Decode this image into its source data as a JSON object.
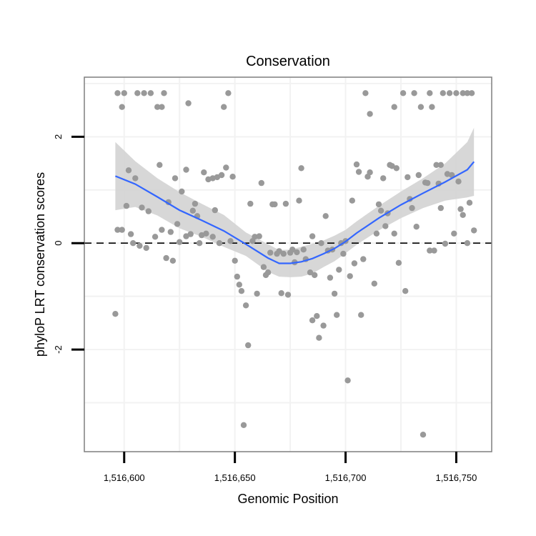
{
  "chart_data": {
    "type": "scatter",
    "title": "Conservation",
    "xlabel": "Genomic Position",
    "ylabel": "phyloP LRT conservation scores",
    "xlim": [
      1516582,
      1516766
    ],
    "ylim": [
      -3.92,
      3.12
    ],
    "x_ticks": [
      {
        "value": 1516600,
        "label": "1,516,600"
      },
      {
        "value": 1516650,
        "label": "1,516,650"
      },
      {
        "value": 1516700,
        "label": "1,516,700"
      },
      {
        "value": 1516750,
        "label": "1,516,750"
      }
    ],
    "y_ticks": [
      {
        "value": -2,
        "label": "-2"
      },
      {
        "value": 0,
        "label": "0"
      },
      {
        "value": 2,
        "label": "2"
      }
    ],
    "reference_line": {
      "y": 0,
      "style": "dashed",
      "color": "#000000"
    },
    "colors": {
      "points": "#999999",
      "smooth_line": "#3366ff",
      "confidence_band": "#d3d3d3",
      "grid": "#f2f2f2",
      "panel_border": "#7f7f7f"
    },
    "series": [
      {
        "name": "phyloP scores",
        "points": [
          [
            1516596,
            -1.33
          ],
          [
            1516597,
            2.82
          ],
          [
            1516597,
            0.25
          ],
          [
            1516599,
            0.25
          ],
          [
            1516599,
            2.56
          ],
          [
            1516600,
            2.82
          ],
          [
            1516601,
            0.7
          ],
          [
            1516602,
            1.37
          ],
          [
            1516603,
            0.17
          ],
          [
            1516604,
            0.0
          ],
          [
            1516605,
            1.22
          ],
          [
            1516606,
            2.82
          ],
          [
            1516607,
            -0.05
          ],
          [
            1516608,
            0.67
          ],
          [
            1516609,
            2.82
          ],
          [
            1516610,
            -0.09
          ],
          [
            1516611,
            0.6
          ],
          [
            1516612,
            2.82
          ],
          [
            1516614,
            0.12
          ],
          [
            1516615,
            2.56
          ],
          [
            1516616,
            1.47
          ],
          [
            1516617,
            0.25
          ],
          [
            1516617,
            2.56
          ],
          [
            1516618,
            2.82
          ],
          [
            1516619,
            -0.28
          ],
          [
            1516620,
            0.77
          ],
          [
            1516621,
            0.21
          ],
          [
            1516622,
            -0.33
          ],
          [
            1516623,
            1.22
          ],
          [
            1516624,
            0.36
          ],
          [
            1516625,
            0.02
          ],
          [
            1516626,
            0.97
          ],
          [
            1516628,
            1.38
          ],
          [
            1516628,
            0.13
          ],
          [
            1516629,
            2.63
          ],
          [
            1516630,
            0.17
          ],
          [
            1516631,
            0.61
          ],
          [
            1516632,
            0.74
          ],
          [
            1516633,
            0.51
          ],
          [
            1516634,
            0.0
          ],
          [
            1516635,
            0.15
          ],
          [
            1516636,
            1.33
          ],
          [
            1516637,
            0.18
          ],
          [
            1516638,
            1.2
          ],
          [
            1516640,
            0.12
          ],
          [
            1516640,
            1.22
          ],
          [
            1516641,
            0.62
          ],
          [
            1516642,
            1.24
          ],
          [
            1516643,
            0.0
          ],
          [
            1516644,
            1.28
          ],
          [
            1516645,
            2.56
          ],
          [
            1516646,
            1.42
          ],
          [
            1516647,
            2.82
          ],
          [
            1516648,
            0.04
          ],
          [
            1516649,
            1.25
          ],
          [
            1516650,
            -0.33
          ],
          [
            1516651,
            -0.63
          ],
          [
            1516652,
            -0.78
          ],
          [
            1516653,
            -0.9
          ],
          [
            1516654,
            -3.42
          ],
          [
            1516655,
            -1.17
          ],
          [
            1516656,
            -1.92
          ],
          [
            1516657,
            0.74
          ],
          [
            1516658,
            0.04
          ],
          [
            1516659,
            0.12
          ],
          [
            1516660,
            -0.95
          ],
          [
            1516661,
            0.13
          ],
          [
            1516662,
            1.13
          ],
          [
            1516663,
            -0.45
          ],
          [
            1516664,
            -0.6
          ],
          [
            1516665,
            -0.55
          ],
          [
            1516666,
            -0.18
          ],
          [
            1516667,
            0.73
          ],
          [
            1516668,
            0.73
          ],
          [
            1516669,
            -0.2
          ],
          [
            1516670,
            -0.15
          ],
          [
            1516671,
            -0.94
          ],
          [
            1516672,
            -0.2
          ],
          [
            1516673,
            0.74
          ],
          [
            1516674,
            -0.97
          ],
          [
            1516675,
            -0.18
          ],
          [
            1516676,
            -0.12
          ],
          [
            1516677,
            -0.36
          ],
          [
            1516678,
            -0.17
          ],
          [
            1516679,
            0.8
          ],
          [
            1516680,
            1.41
          ],
          [
            1516681,
            -0.12
          ],
          [
            1516682,
            -0.3
          ],
          [
            1516684,
            -0.55
          ],
          [
            1516685,
            0.13
          ],
          [
            1516685,
            -1.45
          ],
          [
            1516686,
            -0.6
          ],
          [
            1516687,
            -1.37
          ],
          [
            1516688,
            -1.78
          ],
          [
            1516689,
            0.0
          ],
          [
            1516690,
            -1.55
          ],
          [
            1516691,
            0.51
          ],
          [
            1516692,
            -0.14
          ],
          [
            1516693,
            -0.65
          ],
          [
            1516694,
            -0.12
          ],
          [
            1516695,
            -0.95
          ],
          [
            1516696,
            -1.35
          ],
          [
            1516697,
            -0.5
          ],
          [
            1516698,
            0.0
          ],
          [
            1516699,
            -0.2
          ],
          [
            1516700,
            0.04
          ],
          [
            1516701,
            -2.58
          ],
          [
            1516702,
            -0.62
          ],
          [
            1516703,
            0.8
          ],
          [
            1516704,
            -0.38
          ],
          [
            1516705,
            1.48
          ],
          [
            1516706,
            1.34
          ],
          [
            1516707,
            -1.35
          ],
          [
            1516708,
            -0.3
          ],
          [
            1516709,
            2.82
          ],
          [
            1516710,
            1.25
          ],
          [
            1516711,
            2.43
          ],
          [
            1516711,
            1.33
          ],
          [
            1516713,
            -0.76
          ],
          [
            1516714,
            0.18
          ],
          [
            1516715,
            0.73
          ],
          [
            1516716,
            0.61
          ],
          [
            1516717,
            1.22
          ],
          [
            1516718,
            0.32
          ],
          [
            1516719,
            0.56
          ],
          [
            1516720,
            1.47
          ],
          [
            1516721,
            1.45
          ],
          [
            1516722,
            2.56
          ],
          [
            1516722,
            0.18
          ],
          [
            1516723,
            1.41
          ],
          [
            1516724,
            -0.37
          ],
          [
            1516726,
            2.82
          ],
          [
            1516727,
            -0.9
          ],
          [
            1516728,
            1.24
          ],
          [
            1516729,
            0.83
          ],
          [
            1516730,
            0.66
          ],
          [
            1516731,
            2.82
          ],
          [
            1516732,
            0.31
          ],
          [
            1516733,
            1.28
          ],
          [
            1516734,
            2.56
          ],
          [
            1516735,
            -3.6
          ],
          [
            1516736,
            1.14
          ],
          [
            1516737,
            1.13
          ],
          [
            1516738,
            -0.14
          ],
          [
            1516738,
            2.82
          ],
          [
            1516739,
            2.56
          ],
          [
            1516740,
            -0.14
          ],
          [
            1516741,
            1.47
          ],
          [
            1516742,
            1.12
          ],
          [
            1516743,
            0.66
          ],
          [
            1516743,
            1.47
          ],
          [
            1516744,
            2.82
          ],
          [
            1516745,
            -0.01
          ],
          [
            1516746,
            1.3
          ],
          [
            1516747,
            2.82
          ],
          [
            1516748,
            1.28
          ],
          [
            1516749,
            0.18
          ],
          [
            1516750,
            2.82
          ],
          [
            1516751,
            1.16
          ],
          [
            1516752,
            0.64
          ],
          [
            1516753,
            2.82
          ],
          [
            1516753,
            0.53
          ],
          [
            1516755,
            2.82
          ],
          [
            1516755,
            0.0
          ],
          [
            1516756,
            0.76
          ],
          [
            1516757,
            2.82
          ],
          [
            1516758,
            0.24
          ]
        ]
      },
      {
        "name": "loess smooth",
        "type": "line",
        "x": [
          1516596,
          1516605,
          1516615,
          1516625,
          1516635,
          1516645,
          1516655,
          1516665,
          1516670,
          1516675,
          1516680,
          1516685,
          1516690,
          1516695,
          1516700,
          1516705,
          1516715,
          1516725,
          1516735,
          1516745,
          1516755,
          1516758
        ],
        "y": [
          1.26,
          1.11,
          0.87,
          0.62,
          0.43,
          0.23,
          -0.02,
          -0.28,
          -0.38,
          -0.38,
          -0.35,
          -0.29,
          -0.2,
          -0.1,
          0.03,
          0.19,
          0.47,
          0.72,
          0.94,
          1.15,
          1.38,
          1.53
        ],
        "ci_upper": [
          1.9,
          1.54,
          1.22,
          0.96,
          0.74,
          0.53,
          0.2,
          -0.02,
          -0.13,
          -0.12,
          -0.07,
          -0.01,
          0.05,
          0.14,
          0.25,
          0.41,
          0.7,
          0.97,
          1.22,
          1.5,
          1.9,
          2.17
        ],
        "ci_lower": [
          0.62,
          0.68,
          0.52,
          0.28,
          0.12,
          -0.07,
          -0.24,
          -0.54,
          -0.63,
          -0.64,
          -0.63,
          -0.57,
          -0.45,
          -0.34,
          -0.19,
          -0.03,
          0.24,
          0.47,
          0.66,
          0.8,
          0.86,
          0.89
        ]
      }
    ]
  }
}
